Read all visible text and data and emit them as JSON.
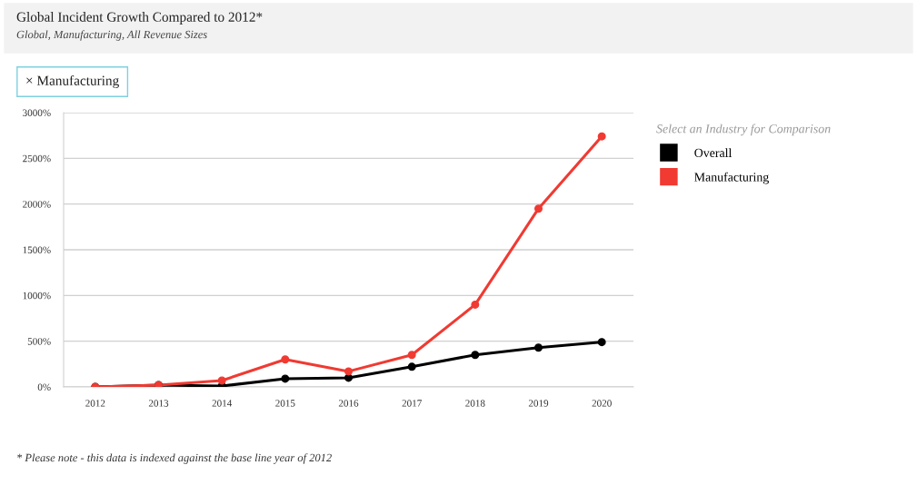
{
  "chart_data": {
    "type": "line",
    "title": "Global Incident Growth Compared to 2012*",
    "subtitle": "Global, Manufacturing, All Revenue Sizes",
    "categories": [
      "2012",
      "2013",
      "2014",
      "2015",
      "2016",
      "2017",
      "2018",
      "2019",
      "2020"
    ],
    "series": [
      {
        "name": "Overall",
        "color": "#000000",
        "values": [
          0,
          20,
          10,
          90,
          100,
          220,
          350,
          430,
          490
        ]
      },
      {
        "name": "Manufacturing",
        "color": "#f03a32",
        "values": [
          0,
          20,
          70,
          300,
          170,
          350,
          900,
          1950,
          2740
        ]
      }
    ],
    "ylim": [
      0,
      3000
    ],
    "yticks": [
      {
        "value": 0,
        "label": "0%"
      },
      {
        "value": 500,
        "label": "500%"
      },
      {
        "value": 1000,
        "label": "1000%"
      },
      {
        "value": 1500,
        "label": "1500%"
      },
      {
        "value": 2000,
        "label": "2000%"
      },
      {
        "value": 2500,
        "label": "2500%"
      },
      {
        "value": 3000,
        "label": "3000%"
      }
    ],
    "grid": "y",
    "legend": "right",
    "legend_title": "Select an Industry for Comparison",
    "marker": "circle",
    "line_style": "solid",
    "annotations": [
      "× Manufacturing",
      "* Please note - this data is indexed against the base line year of 2012"
    ]
  }
}
